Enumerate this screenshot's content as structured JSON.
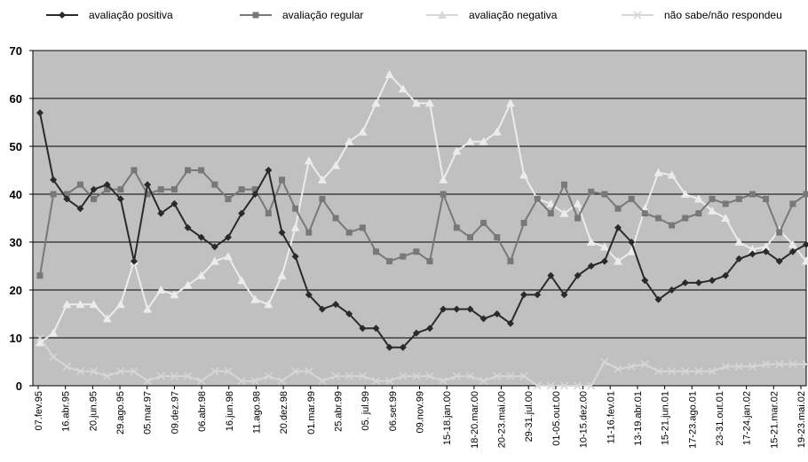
{
  "chart_data": {
    "type": "line",
    "title": "",
    "xlabel": "",
    "ylabel": "",
    "ylim": [
      0,
      70
    ],
    "yticks": [
      0,
      10,
      20,
      30,
      40,
      50,
      60,
      70
    ],
    "grid": true,
    "legend_position": "top",
    "plot_background": "#c0c0c0",
    "x_tick_labels": [
      "07.fev.95",
      "16.abr.95",
      "20.jun.95",
      "29.ago.95",
      "05.mar.97",
      "09.dez.97",
      "06.abr.98",
      "16.jun.98",
      "11.ago.98",
      "20.dez.98",
      "01.mar.99",
      "25.abr.99",
      "05. jul.99",
      "06.set.99",
      "09.nov.99",
      "15-18.jan.00",
      "18-20.mar.00",
      "20-23.mai.00",
      "29-31.jul.00",
      "01-05.out.00",
      "10-15.dez.00",
      "11-16.fev.01",
      "13-19.abr.01",
      "15-21.jun.01",
      "17-23.ago.01",
      "23-31.out.01",
      "17-24.jan.02",
      "15-21.mar.02",
      "19-23.mai.02"
    ],
    "series": [
      {
        "name": "avaliação positiva",
        "color": "#2a2a2a",
        "marker": "diamond",
        "values": [
          57,
          43,
          39,
          37,
          41,
          42,
          39,
          26,
          42,
          36,
          38,
          33,
          31,
          29,
          31,
          36,
          40,
          45,
          32,
          27,
          19,
          16,
          17,
          15,
          12,
          12,
          8,
          8,
          11,
          12,
          16,
          16,
          16,
          14,
          15,
          13,
          19,
          19,
          23,
          19,
          23,
          25,
          26,
          33,
          30,
          22,
          18,
          20,
          21.5,
          21.5,
          22,
          23,
          26.5,
          27.5,
          28,
          26,
          28,
          29.5
        ]
      },
      {
        "name": "avaliação regular",
        "color": "#787878",
        "marker": "square",
        "values": [
          23,
          40,
          40,
          42,
          39,
          41,
          41,
          45,
          40,
          41,
          41,
          45,
          45,
          42,
          39,
          41,
          41,
          36,
          43,
          37,
          32,
          39,
          35,
          32,
          33,
          28,
          26,
          27,
          28,
          26,
          40,
          33,
          31,
          34,
          31,
          26,
          34,
          39,
          36,
          42,
          35,
          40.5,
          40,
          37,
          39,
          36,
          35,
          33.5,
          35,
          36,
          39,
          38,
          39,
          40,
          39,
          32,
          38,
          40
        ]
      },
      {
        "name": "avaliação negativa",
        "color": "#ececec",
        "marker": "triangle",
        "values": [
          9,
          11,
          17,
          17,
          17,
          14,
          17,
          26,
          16,
          20,
          19,
          21,
          23,
          26,
          27,
          22,
          18,
          17,
          23,
          33,
          47,
          43,
          46,
          51,
          53,
          59,
          65,
          62,
          59,
          59,
          43,
          49,
          51,
          51,
          53,
          59,
          44,
          39,
          38,
          36,
          38,
          30,
          29,
          26,
          28,
          37,
          44.5,
          44,
          40,
          39,
          36.5,
          35,
          30,
          28.5,
          29,
          32.5,
          29.5,
          26
        ]
      },
      {
        "name": "não sabe/não respondeu",
        "color": "#d6d6d6",
        "marker": "x",
        "values": [
          10,
          6,
          4,
          3,
          3,
          2,
          3,
          3,
          1,
          2,
          2,
          2,
          1,
          3,
          3,
          1,
          1,
          2,
          1,
          3,
          3,
          1,
          2,
          2,
          2,
          1,
          1,
          2,
          2,
          2,
          1,
          2,
          2,
          1,
          2,
          2,
          2,
          0,
          0,
          0,
          0,
          0,
          5,
          3.5,
          4,
          4.5,
          3,
          3,
          3,
          3,
          3,
          4,
          4,
          4,
          4.5,
          4.5,
          4.5,
          4.5
        ]
      }
    ]
  }
}
